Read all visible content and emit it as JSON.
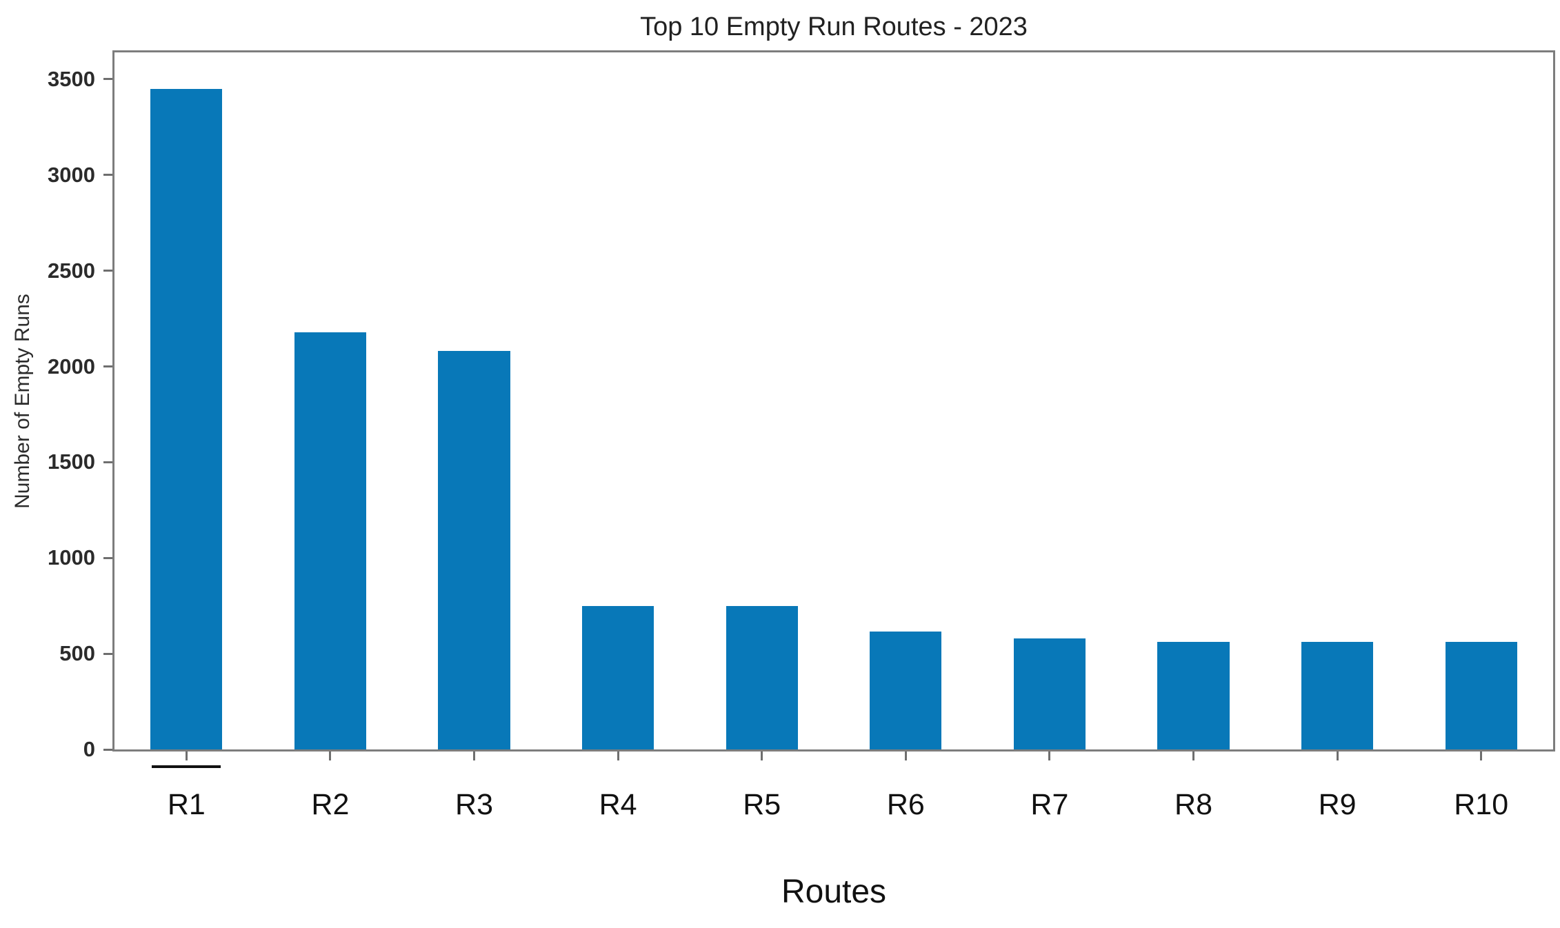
{
  "figure": {
    "background": "#ffffff"
  },
  "chart_data": {
    "type": "bar",
    "title": "Top 10 Empty Run Routes - 2023",
    "xlabel": "Routes",
    "ylabel": "Number of Empty Runs",
    "categories": [
      "R1",
      "R2",
      "R3",
      "R4",
      "R5",
      "R6",
      "R7",
      "R8",
      "R9",
      "R10"
    ],
    "values": [
      3450,
      2180,
      2080,
      750,
      750,
      615,
      580,
      560,
      560,
      560
    ],
    "ylim": [
      0,
      3640
    ],
    "yticks": [
      0,
      500,
      1000,
      1500,
      2000,
      2500,
      3000,
      3500
    ],
    "grid": false,
    "legend": null,
    "bar_color": "#0878b8",
    "spine_color": "#7d7d7d",
    "bar_width_fraction": 0.5,
    "annotations": [
      {
        "type": "underline-mark",
        "category": "R1",
        "color": "#111111"
      }
    ]
  }
}
